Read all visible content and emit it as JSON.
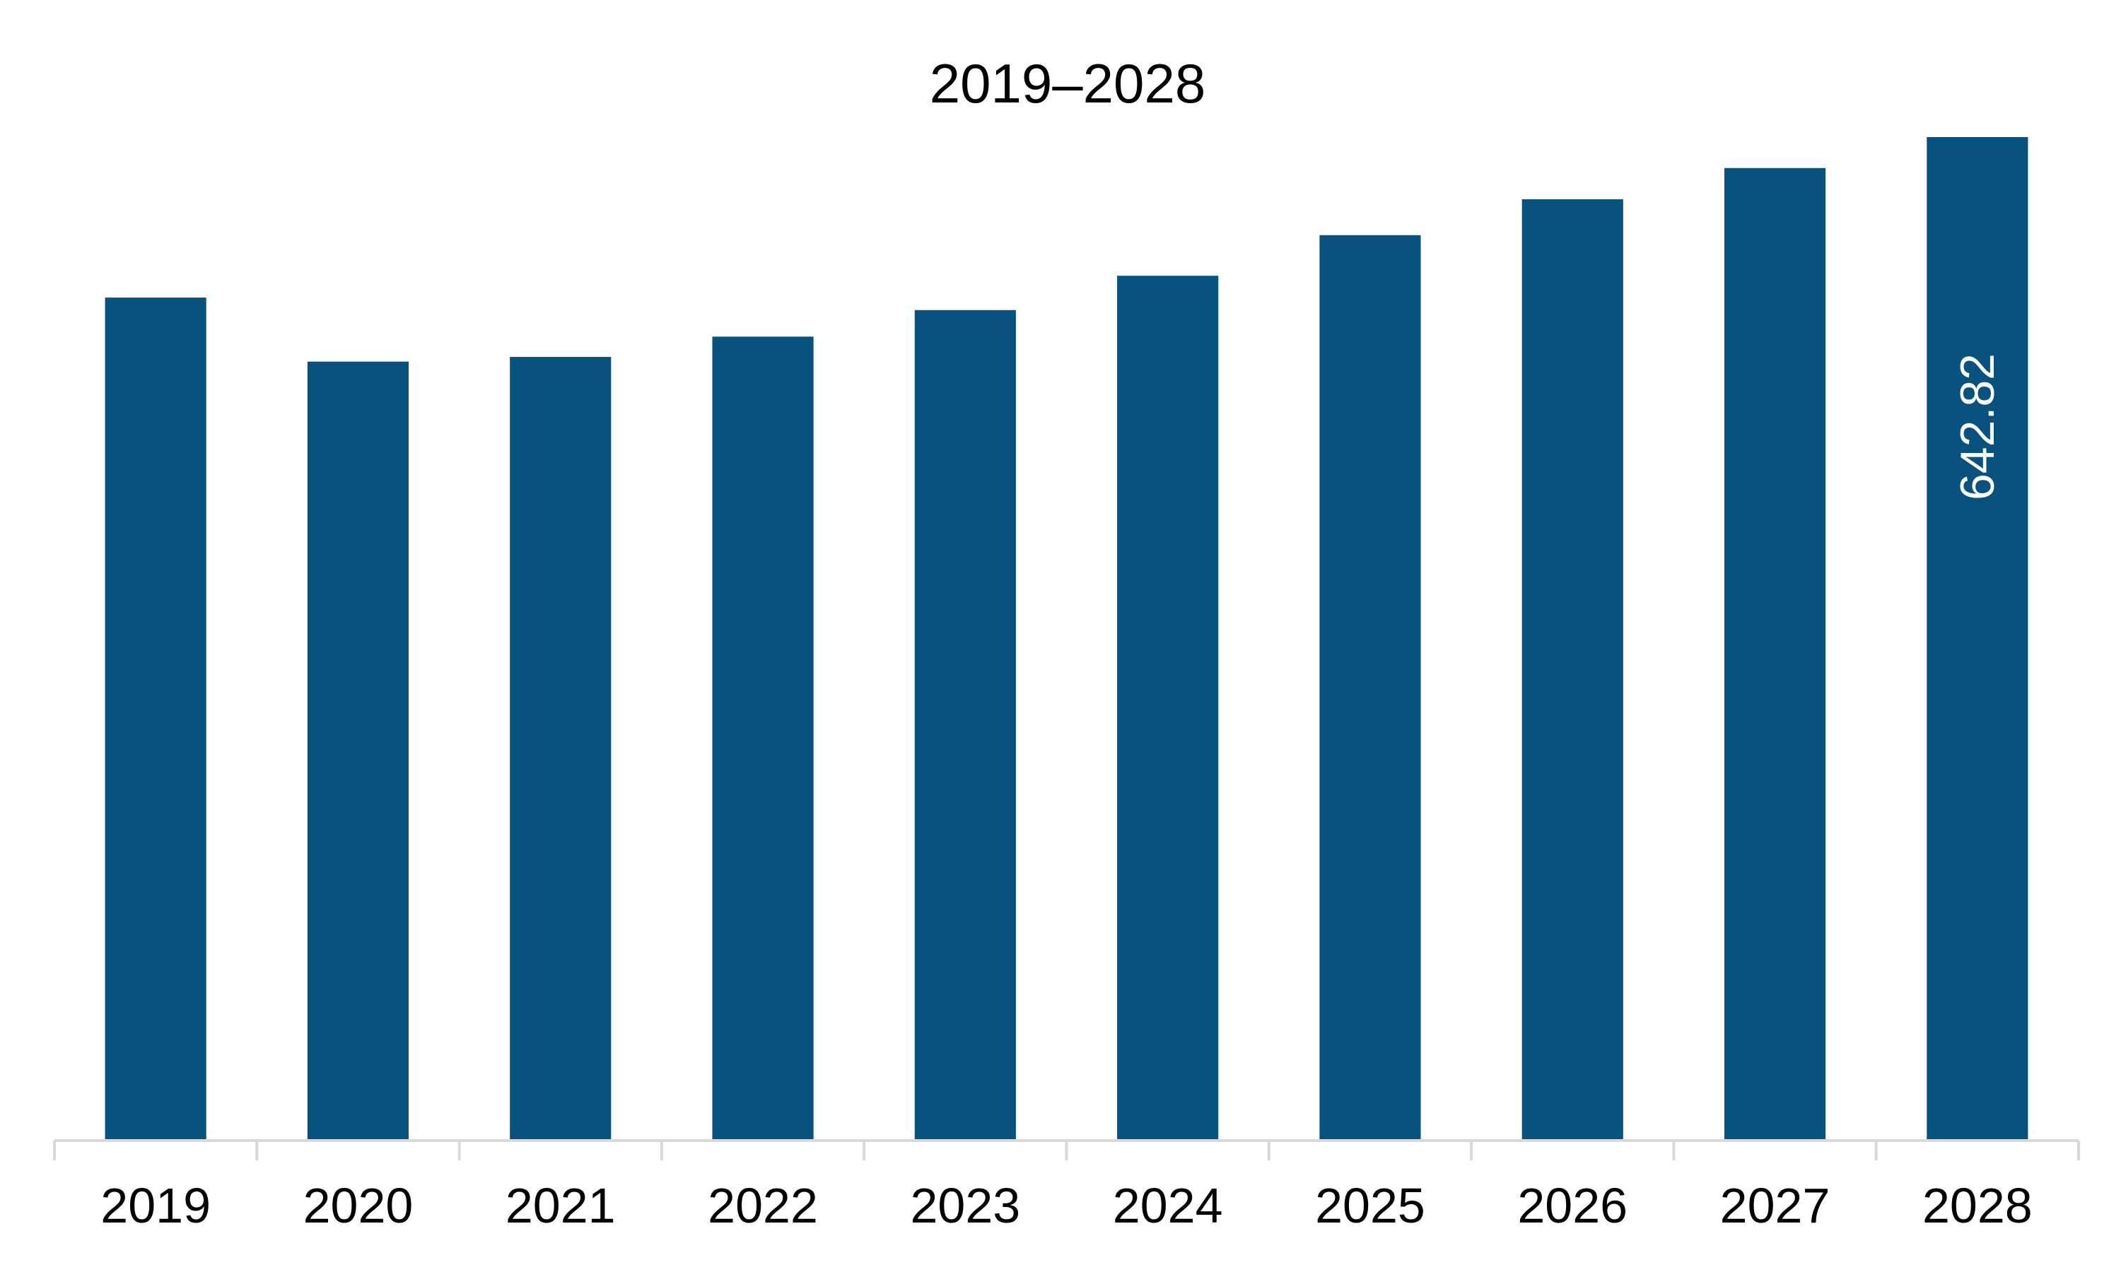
{
  "chart_data": {
    "type": "bar",
    "title": "2019–2028",
    "xlabel": "",
    "ylabel": "",
    "categories": [
      "2019",
      "2020",
      "2021",
      "2022",
      "2023",
      "2024",
      "2025",
      "2026",
      "2027",
      "2028"
    ],
    "values": [
      540,
      499,
      502,
      515,
      532,
      554,
      580,
      603,
      623,
      642.82
    ],
    "data_labels": [
      "",
      "",
      "",
      "",
      "",
      "",
      "",
      "",
      "",
      "642.82"
    ],
    "ylim": [
      0,
      642.82
    ],
    "grid": false,
    "legend": "none",
    "bar_color": "#08527f",
    "axis_color": "#d9d9d9"
  }
}
